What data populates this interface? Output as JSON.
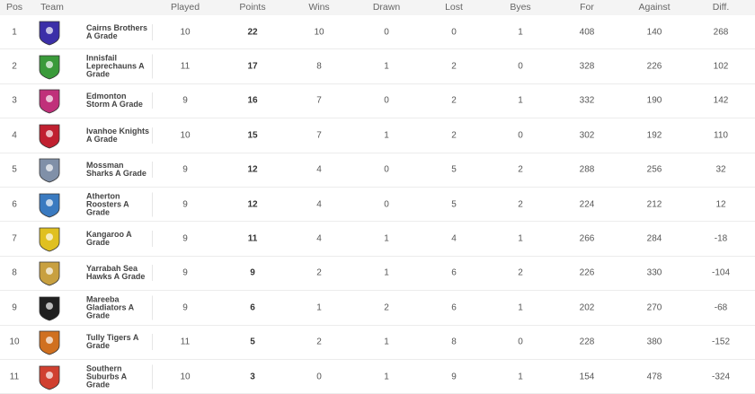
{
  "headers": [
    "Pos",
    "Team",
    "Played",
    "Points",
    "Wins",
    "Drawn",
    "Lost",
    "Byes",
    "For",
    "Against",
    "Diff."
  ],
  "rows": [
    {
      "pos": "1",
      "team": "Cairns Brothers A Grade",
      "played": "10",
      "points": "22",
      "wins": "10",
      "drawn": "0",
      "lost": "0",
      "byes": "1",
      "for": "408",
      "against": "140",
      "diff": "268",
      "logo_color": "#3b2fa8"
    },
    {
      "pos": "2",
      "team": "Innisfail Leprechauns A Grade",
      "played": "11",
      "points": "17",
      "wins": "8",
      "drawn": "1",
      "lost": "2",
      "byes": "0",
      "for": "328",
      "against": "226",
      "diff": "102",
      "logo_color": "#3a9a3a"
    },
    {
      "pos": "3",
      "team": "Edmonton Storm A Grade",
      "played": "9",
      "points": "16",
      "wins": "7",
      "drawn": "0",
      "lost": "2",
      "byes": "1",
      "for": "332",
      "against": "190",
      "diff": "142",
      "logo_color": "#c0307a"
    },
    {
      "pos": "4",
      "team": "Ivanhoe Knights A Grade",
      "played": "10",
      "points": "15",
      "wins": "7",
      "drawn": "1",
      "lost": "2",
      "byes": "0",
      "for": "302",
      "against": "192",
      "diff": "110",
      "logo_color": "#c02030"
    },
    {
      "pos": "5",
      "team": "Mossman Sharks A Grade",
      "played": "9",
      "points": "12",
      "wins": "4",
      "drawn": "0",
      "lost": "5",
      "byes": "2",
      "for": "288",
      "against": "256",
      "diff": "32",
      "logo_color": "#8090a8"
    },
    {
      "pos": "6",
      "team": "Atherton Roosters A Grade",
      "played": "9",
      "points": "12",
      "wins": "4",
      "drawn": "0",
      "lost": "5",
      "byes": "2",
      "for": "224",
      "against": "212",
      "diff": "12",
      "logo_color": "#3a7ac0"
    },
    {
      "pos": "7",
      "team": "Kangaroo A Grade",
      "played": "9",
      "points": "11",
      "wins": "4",
      "drawn": "1",
      "lost": "4",
      "byes": "1",
      "for": "266",
      "against": "284",
      "diff": "-18",
      "logo_color": "#e0c020"
    },
    {
      "pos": "8",
      "team": "Yarrabah Sea Hawks A Grade",
      "played": "9",
      "points": "9",
      "wins": "2",
      "drawn": "1",
      "lost": "6",
      "byes": "2",
      "for": "226",
      "against": "330",
      "diff": "-104",
      "logo_color": "#c8a040"
    },
    {
      "pos": "9",
      "team": "Mareeba Gladiators A Grade",
      "played": "9",
      "points": "6",
      "wins": "1",
      "drawn": "2",
      "lost": "6",
      "byes": "1",
      "for": "202",
      "against": "270",
      "diff": "-68",
      "logo_color": "#202020"
    },
    {
      "pos": "10",
      "team": "Tully Tigers A Grade",
      "played": "11",
      "points": "5",
      "wins": "2",
      "drawn": "1",
      "lost": "8",
      "byes": "0",
      "for": "228",
      "against": "380",
      "diff": "-152",
      "logo_color": "#d07020"
    },
    {
      "pos": "11",
      "team": "Southern Suburbs A Grade",
      "played": "10",
      "points": "3",
      "wins": "0",
      "drawn": "1",
      "lost": "9",
      "byes": "1",
      "for": "154",
      "against": "478",
      "diff": "-324",
      "logo_color": "#d04030"
    }
  ]
}
